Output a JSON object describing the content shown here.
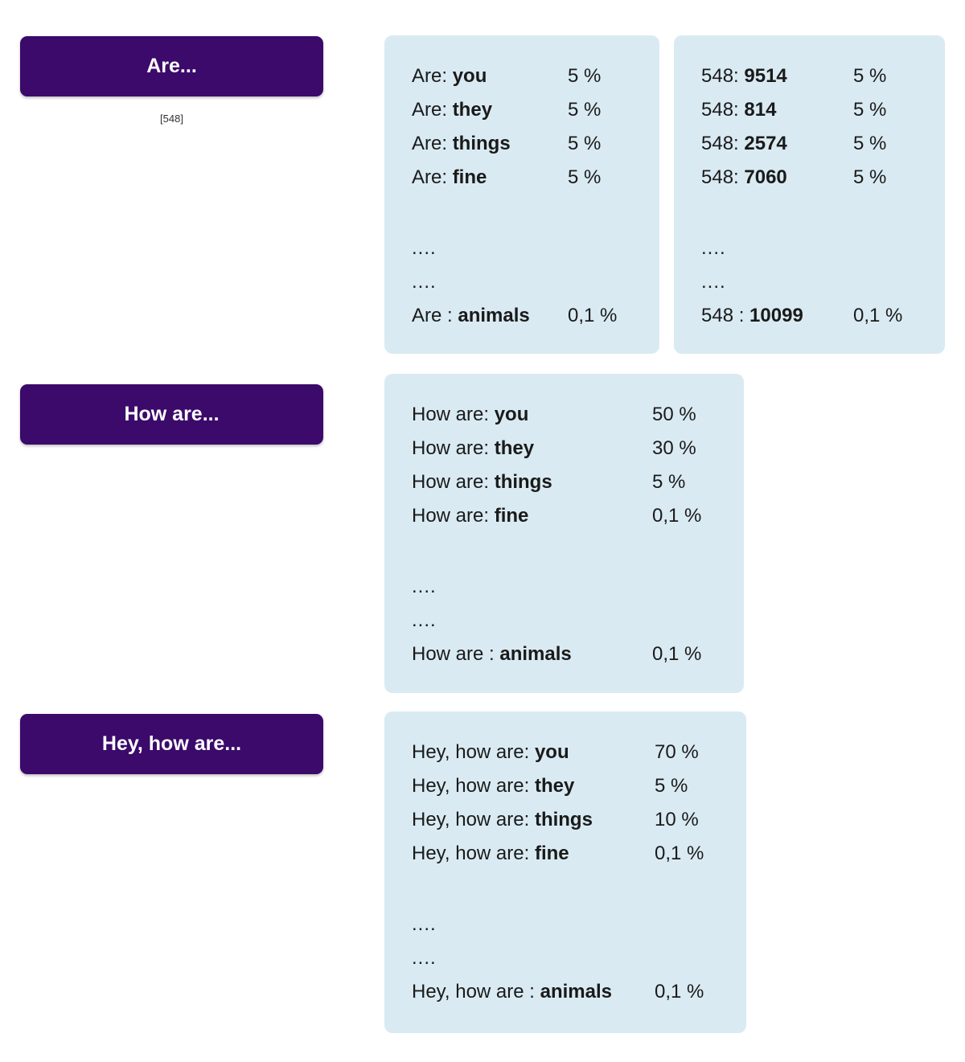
{
  "colors": {
    "button_bg": "#3b0a6a",
    "button_text": "#ffffff",
    "panel_bg": "#d9eaf2",
    "text": "#1a1a1a",
    "sublabel": "#333333",
    "page_bg": "#ffffff"
  },
  "rows": [
    {
      "button": {
        "label": "Are...",
        "sublabel": "[548]"
      },
      "panels": [
        {
          "lines": [
            {
              "prefix": "Are: ",
              "word": "you",
              "pct": "5 %"
            },
            {
              "prefix": "Are: ",
              "word": "they",
              "pct": "5 %"
            },
            {
              "prefix": "Are: ",
              "word": "things",
              "pct": "5 %"
            },
            {
              "prefix": "Are: ",
              "word": "fine",
              "pct": "5 %"
            }
          ],
          "dots": [
            "....",
            "...."
          ],
          "last": {
            "prefix": "Are : ",
            "word": "animals",
            "pct": "0,1 %"
          }
        },
        {
          "lines": [
            {
              "prefix": "548: ",
              "word": "9514",
              "pct": "5 %"
            },
            {
              "prefix": "548: ",
              "word": "814",
              "pct": "5 %"
            },
            {
              "prefix": "548: ",
              "word": "2574",
              "pct": "5 %"
            },
            {
              "prefix": "548: ",
              "word": "7060",
              "pct": "5 %"
            }
          ],
          "dots": [
            "....",
            "...."
          ],
          "last": {
            "prefix": "548 : ",
            "word": "10099",
            "pct": "0,1 %"
          }
        }
      ]
    },
    {
      "button": {
        "label": "How are...",
        "sublabel": ""
      },
      "panels": [
        {
          "lines": [
            {
              "prefix": "How are: ",
              "word": "you",
              "pct": "50 %"
            },
            {
              "prefix": "How are: ",
              "word": "they",
              "pct": "30 %"
            },
            {
              "prefix": "How are: ",
              "word": "things",
              "pct": "5 %"
            },
            {
              "prefix": "How are: ",
              "word": "fine",
              "pct": "0,1 %"
            }
          ],
          "dots": [
            "....",
            "...."
          ],
          "last": {
            "prefix": "How are : ",
            "word": "animals",
            "pct": "0,1 %"
          }
        }
      ]
    },
    {
      "button": {
        "label": "Hey, how are...",
        "sublabel": ""
      },
      "panels": [
        {
          "lines": [
            {
              "prefix": "Hey, how are: ",
              "word": "you",
              "pct": "70 %"
            },
            {
              "prefix": "Hey, how are: ",
              "word": "they",
              "pct": "5 %"
            },
            {
              "prefix": "Hey, how are: ",
              "word": "things",
              "pct": "10 %"
            },
            {
              "prefix": "Hey, how are: ",
              "word": "fine",
              "pct": "0,1 %"
            }
          ],
          "dots": [
            "....",
            "...."
          ],
          "last": {
            "prefix": "Hey, how are : ",
            "word": "animals",
            "pct": "0,1 %"
          }
        }
      ]
    }
  ]
}
